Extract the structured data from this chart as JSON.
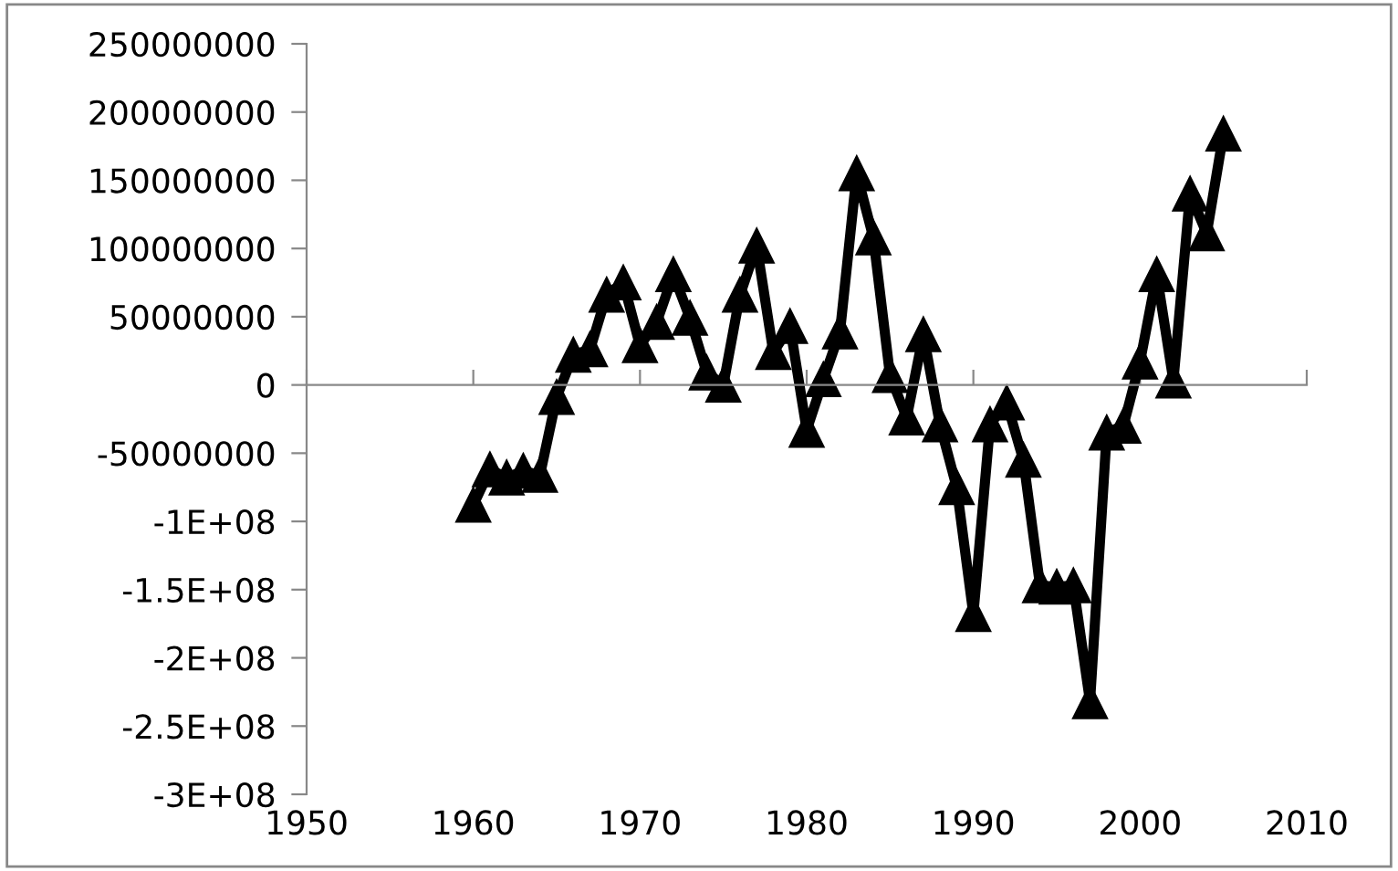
{
  "chart_data": {
    "type": "line",
    "x": [
      1960,
      1961,
      1962,
      1963,
      1964,
      1965,
      1966,
      1967,
      1968,
      1969,
      1970,
      1971,
      1972,
      1973,
      1974,
      1975,
      1976,
      1977,
      1978,
      1979,
      1980,
      1981,
      1982,
      1983,
      1984,
      1985,
      1986,
      1987,
      1988,
      1989,
      1990,
      1991,
      1992,
      1993,
      1994,
      1995,
      1996,
      1997,
      1998,
      1999,
      2000,
      2001,
      2002,
      2003,
      2004,
      2005
    ],
    "series": [
      {
        "color": "#000000",
        "values": [
          -88000000,
          -62000000,
          -68000000,
          -63000000,
          -66000000,
          -9000000,
          22000000,
          26000000,
          66000000,
          75000000,
          29000000,
          46000000,
          81000000,
          49000000,
          9000000,
          0,
          66000000,
          102000000,
          24000000,
          43000000,
          -33000000,
          4000000,
          39000000,
          155000000,
          108000000,
          7000000,
          -24000000,
          37000000,
          -29000000,
          -75000000,
          -168000000,
          -29000000,
          -13000000,
          -55000000,
          -147000000,
          -148000000,
          -147000000,
          -232000000,
          -35000000,
          -30000000,
          17000000,
          81000000,
          3000000,
          140000000,
          111000000,
          184000000
        ]
      }
    ],
    "xlim": [
      1950,
      2010
    ],
    "xticks": [
      1950,
      1960,
      1970,
      1980,
      1990,
      2000,
      2010
    ],
    "ylim": [
      -300000000,
      250000000
    ],
    "yticks": [
      {
        "value": -300000000,
        "label": "-3E+08"
      },
      {
        "value": -250000000,
        "label": "-2.5E+08"
      },
      {
        "value": -200000000,
        "label": "-2E+08"
      },
      {
        "value": -150000000,
        "label": "-1.5E+08"
      },
      {
        "value": -100000000,
        "label": "-1E+08"
      },
      -50000000,
      0,
      50000000,
      100000000,
      150000000,
      200000000,
      250000000
    ],
    "marker": "triangle",
    "line_style": "solid",
    "legend": false
  }
}
